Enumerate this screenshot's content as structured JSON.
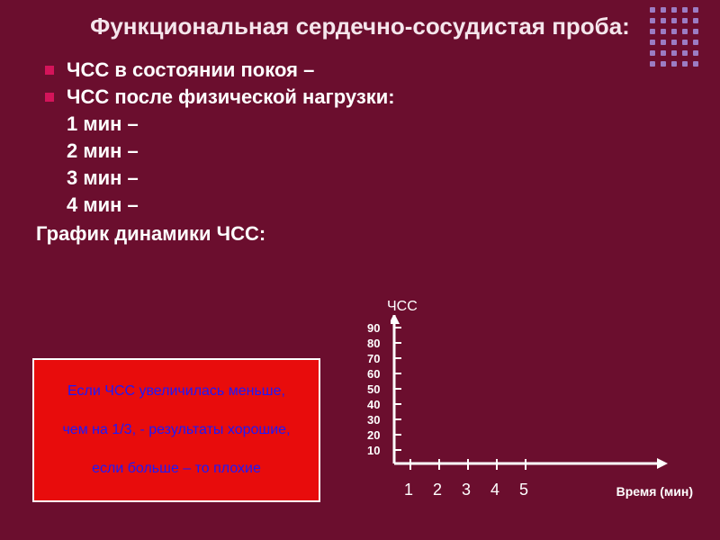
{
  "title": "Функциональная сердечно-сосудистая проба:",
  "bullets": [
    "ЧСС в состоянии покоя –",
    "ЧСС после физической нагрузки:"
  ],
  "lines": [
    "1 мин –",
    "2 мин –",
    "3 мин –",
    "4 мин –"
  ],
  "graph_label": "График динамики ЧСС:",
  "note": {
    "line1": "Если ЧСС увеличилась меньше,",
    "line2": "чем на 1/3, - результаты хорошие,",
    "line3": "если больше – то плохие",
    "bg": "#e80c0c",
    "text_color": "#1a1aff",
    "border_color": "#ffffff"
  },
  "chart": {
    "type": "line",
    "y_title": "ЧСС",
    "x_title": "Время (мин)",
    "y_ticks": [
      "90",
      "80",
      "70",
      "60",
      "50",
      "40",
      "30",
      "20",
      "10"
    ],
    "x_ticks": [
      "1",
      "2",
      "3",
      "4",
      "5"
    ],
    "xlim": [
      0,
      6
    ],
    "ylim": [
      0,
      100
    ],
    "axis_color": "#ffffff",
    "axis_width": 3,
    "background_color": "#6b0e2e",
    "tick_length": 6,
    "data": [],
    "label_fontsize": 13
  },
  "colors": {
    "slide_bg": "#6b0e2e",
    "title_color": "#f5e6ec",
    "text_color": "#ffffff",
    "bullet_color": "#d4145a",
    "dot_color": "#9c7cc3"
  },
  "typography": {
    "title_fontsize": 26,
    "body_fontsize": 22,
    "note_fontsize": 16,
    "font_family": "Arial",
    "font_weight": "bold"
  }
}
